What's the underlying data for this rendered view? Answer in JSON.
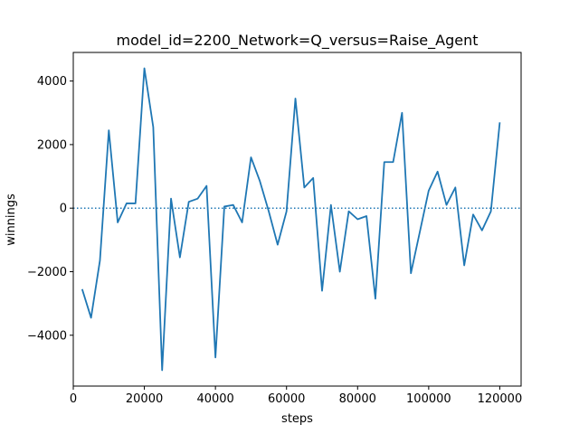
{
  "chart_data": {
    "type": "line",
    "title": "model_id=2200_Network=Q_versus=Raise_Agent",
    "xlabel": "steps",
    "ylabel": "winnings",
    "xlim": [
      0,
      126000
    ],
    "ylim": [
      -5600,
      4900
    ],
    "xticks": [
      0,
      20000,
      40000,
      60000,
      80000,
      100000,
      120000
    ],
    "xtick_labels": [
      "0",
      "20000",
      "40000",
      "60000",
      "80000",
      "100000",
      "120000"
    ],
    "yticks": [
      -4000,
      -2000,
      0,
      2000,
      4000
    ],
    "ytick_labels": [
      "−4000",
      "−2000",
      "0",
      "2000",
      "4000"
    ],
    "grid": false,
    "line_color": "#1f77b4",
    "reference_line": {
      "y": 0,
      "style": "dotted",
      "color": "#1f77b4"
    },
    "series": [
      {
        "x": [
          2500,
          5000,
          7500,
          10000,
          12500,
          15000,
          17500,
          20000,
          22500,
          25000,
          27500,
          30000,
          32500,
          35000,
          37500,
          40000,
          42500,
          45000,
          47500,
          50000,
          52500,
          55000,
          57500,
          60000,
          62500,
          65000,
          67500,
          70000,
          72500,
          75000,
          77500,
          80000,
          82500,
          85000,
          87500,
          90000,
          92500,
          95000,
          97500,
          100000,
          102500,
          105000,
          107500,
          110000,
          112500,
          115000,
          117500,
          120000
        ],
        "y": [
          -2550,
          -3450,
          -1650,
          2450,
          -450,
          150,
          150,
          4400,
          2550,
          -5100,
          300,
          -1550,
          200,
          300,
          700,
          -4700,
          50,
          100,
          -450,
          1600,
          850,
          -100,
          -1150,
          -100,
          3450,
          650,
          950,
          -2600,
          100,
          -2000,
          -100,
          -350,
          -250,
          -2850,
          1450,
          1450,
          3000,
          -2050,
          -750,
          550,
          1150,
          100,
          650,
          -1800,
          -200,
          -700,
          -100,
          2700
        ]
      }
    ]
  }
}
